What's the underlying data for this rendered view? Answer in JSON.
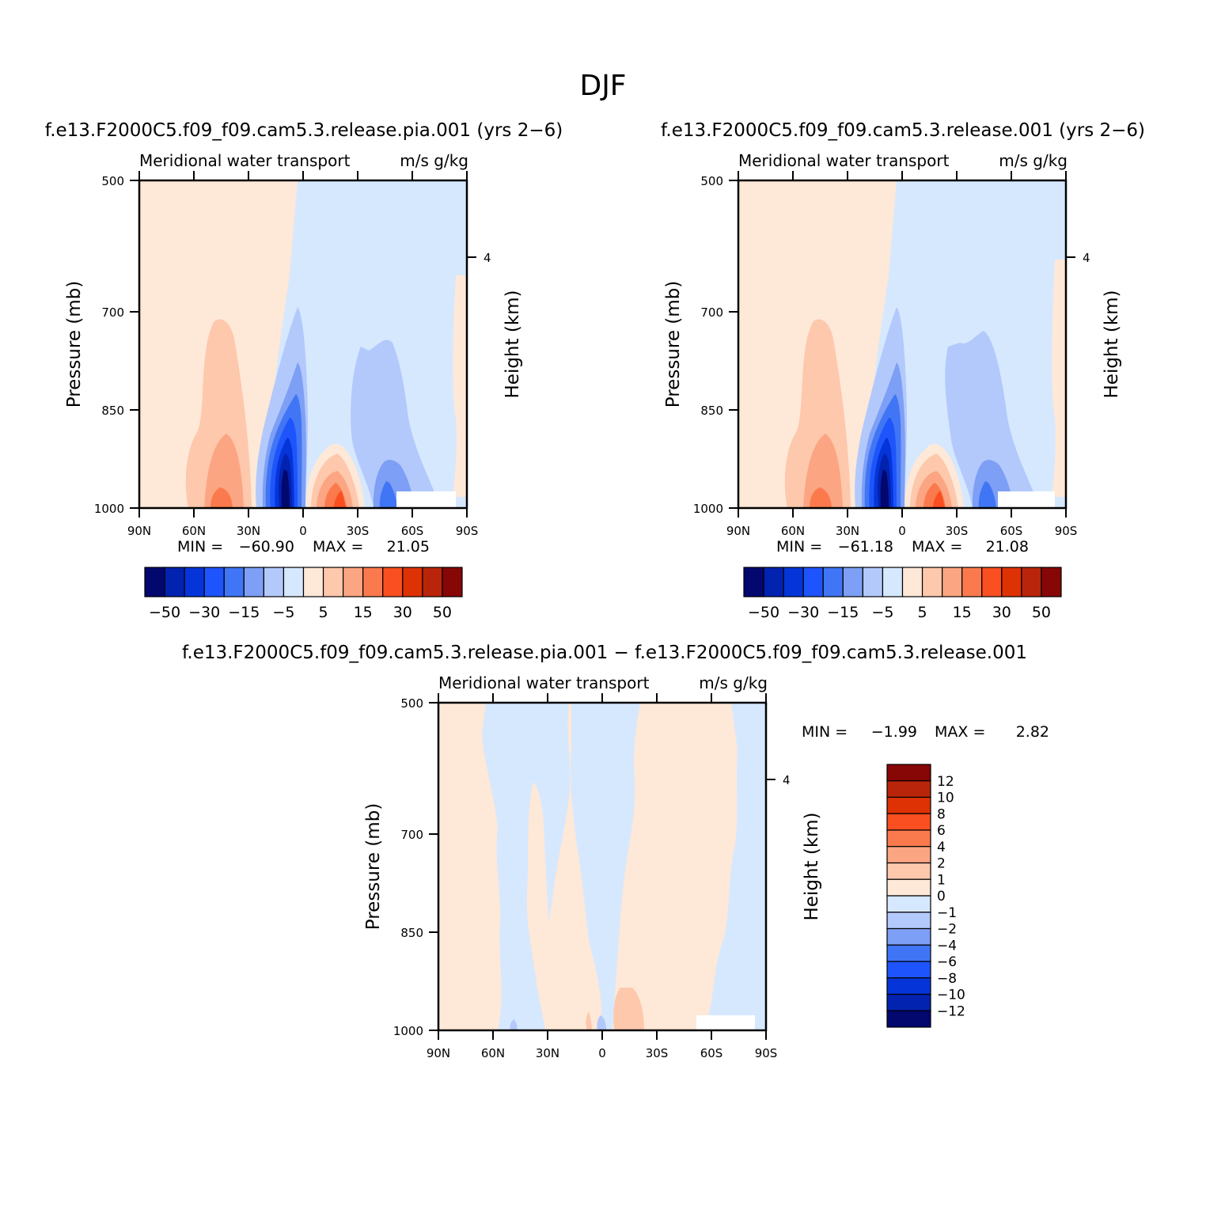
{
  "main_title": "DJF",
  "colors": {
    "main_levels_neg": [
      "#02086e",
      "#0222b0",
      "#0535d9",
      "#1e54fb",
      "#4075f5",
      "#7d9ff5",
      "#b3c9fc",
      "#d6e8fe"
    ],
    "main_levels_pos": [
      "#fee8d8",
      "#fdc8ac",
      "#fca582",
      "#fb7a4d",
      "#fa4f20",
      "#de3205",
      "#b9250a",
      "#870606"
    ],
    "diff_levels_neg": [
      "#d6e8fe",
      "#b3c9fc",
      "#7d9ff5",
      "#4075f5",
      "#1e54fb",
      "#0535d9",
      "#0222b0",
      "#02086e"
    ],
    "diff_levels_pos": [
      "#fee8d8",
      "#fdc8ac",
      "#fca582",
      "#fb7a4d",
      "#fa4f20",
      "#de3205",
      "#b9250a",
      "#870606"
    ]
  },
  "chart_data": [
    {
      "type": "heatmap",
      "case_title": "f.e13.F2000C5.f09_f09.cam5.3.release.pia.001 (yrs 2−6)",
      "left_title": "Meridional water transport",
      "right_title": "m/s g/kg",
      "ylabel": "Pressure (mb)",
      "ylabel_right": "Height (km)",
      "x_ticks": [
        "90N",
        "60N",
        "30N",
        "0",
        "30S",
        "60S",
        "90S"
      ],
      "y_ticks": [
        "500",
        "700",
        "850",
        "1000"
      ],
      "y_right_ticks": [
        "4"
      ],
      "xlim": [
        90,
        -90
      ],
      "ylim": [
        1000,
        500
      ],
      "min_label": "MIN =",
      "min_value": "−60.90",
      "max_label": "MAX =",
      "max_value": "21.05",
      "colorbar_labels": [
        "−50",
        "−30",
        "−15",
        "−5",
        "5",
        "15",
        "30",
        "50"
      ]
    },
    {
      "type": "heatmap",
      "case_title": "f.e13.F2000C5.f09_f09.cam5.3.release.001 (yrs 2−6)",
      "left_title": "Meridional water transport",
      "right_title": "m/s g/kg",
      "ylabel": "Pressure (mb)",
      "ylabel_right": "Height (km)",
      "x_ticks": [
        "90N",
        "60N",
        "30N",
        "0",
        "30S",
        "60S",
        "90S"
      ],
      "y_ticks": [
        "500",
        "700",
        "850",
        "1000"
      ],
      "y_right_ticks": [
        "4"
      ],
      "xlim": [
        90,
        -90
      ],
      "ylim": [
        1000,
        500
      ],
      "min_label": "MIN =",
      "min_value": "−61.18",
      "max_label": "MAX =",
      "max_value": "21.08",
      "colorbar_labels": [
        "−50",
        "−30",
        "−15",
        "−5",
        "5",
        "15",
        "30",
        "50"
      ]
    },
    {
      "type": "heatmap",
      "case_title": "f.e13.F2000C5.f09_f09.cam5.3.release.pia.001 − f.e13.F2000C5.f09_f09.cam5.3.release.001",
      "left_title": "Meridional water transport",
      "right_title": "m/s g/kg",
      "ylabel": "Pressure (mb)",
      "ylabel_right": "Height (km)",
      "x_ticks": [
        "90N",
        "60N",
        "30N",
        "0",
        "30S",
        "60S",
        "90S"
      ],
      "y_ticks": [
        "500",
        "700",
        "850",
        "1000"
      ],
      "y_right_ticks": [
        "4"
      ],
      "xlim": [
        90,
        -90
      ],
      "ylim": [
        1000,
        500
      ],
      "min_label": "MIN =",
      "min_value": "−1.99",
      "max_label": "MAX =",
      "max_value": "2.82",
      "colorbar_labels": [
        "12",
        "10",
        "8",
        "6",
        "4",
        "2",
        "1",
        "0",
        "−1",
        "−2",
        "−4",
        "−6",
        "−8",
        "−10",
        "−12"
      ]
    }
  ]
}
